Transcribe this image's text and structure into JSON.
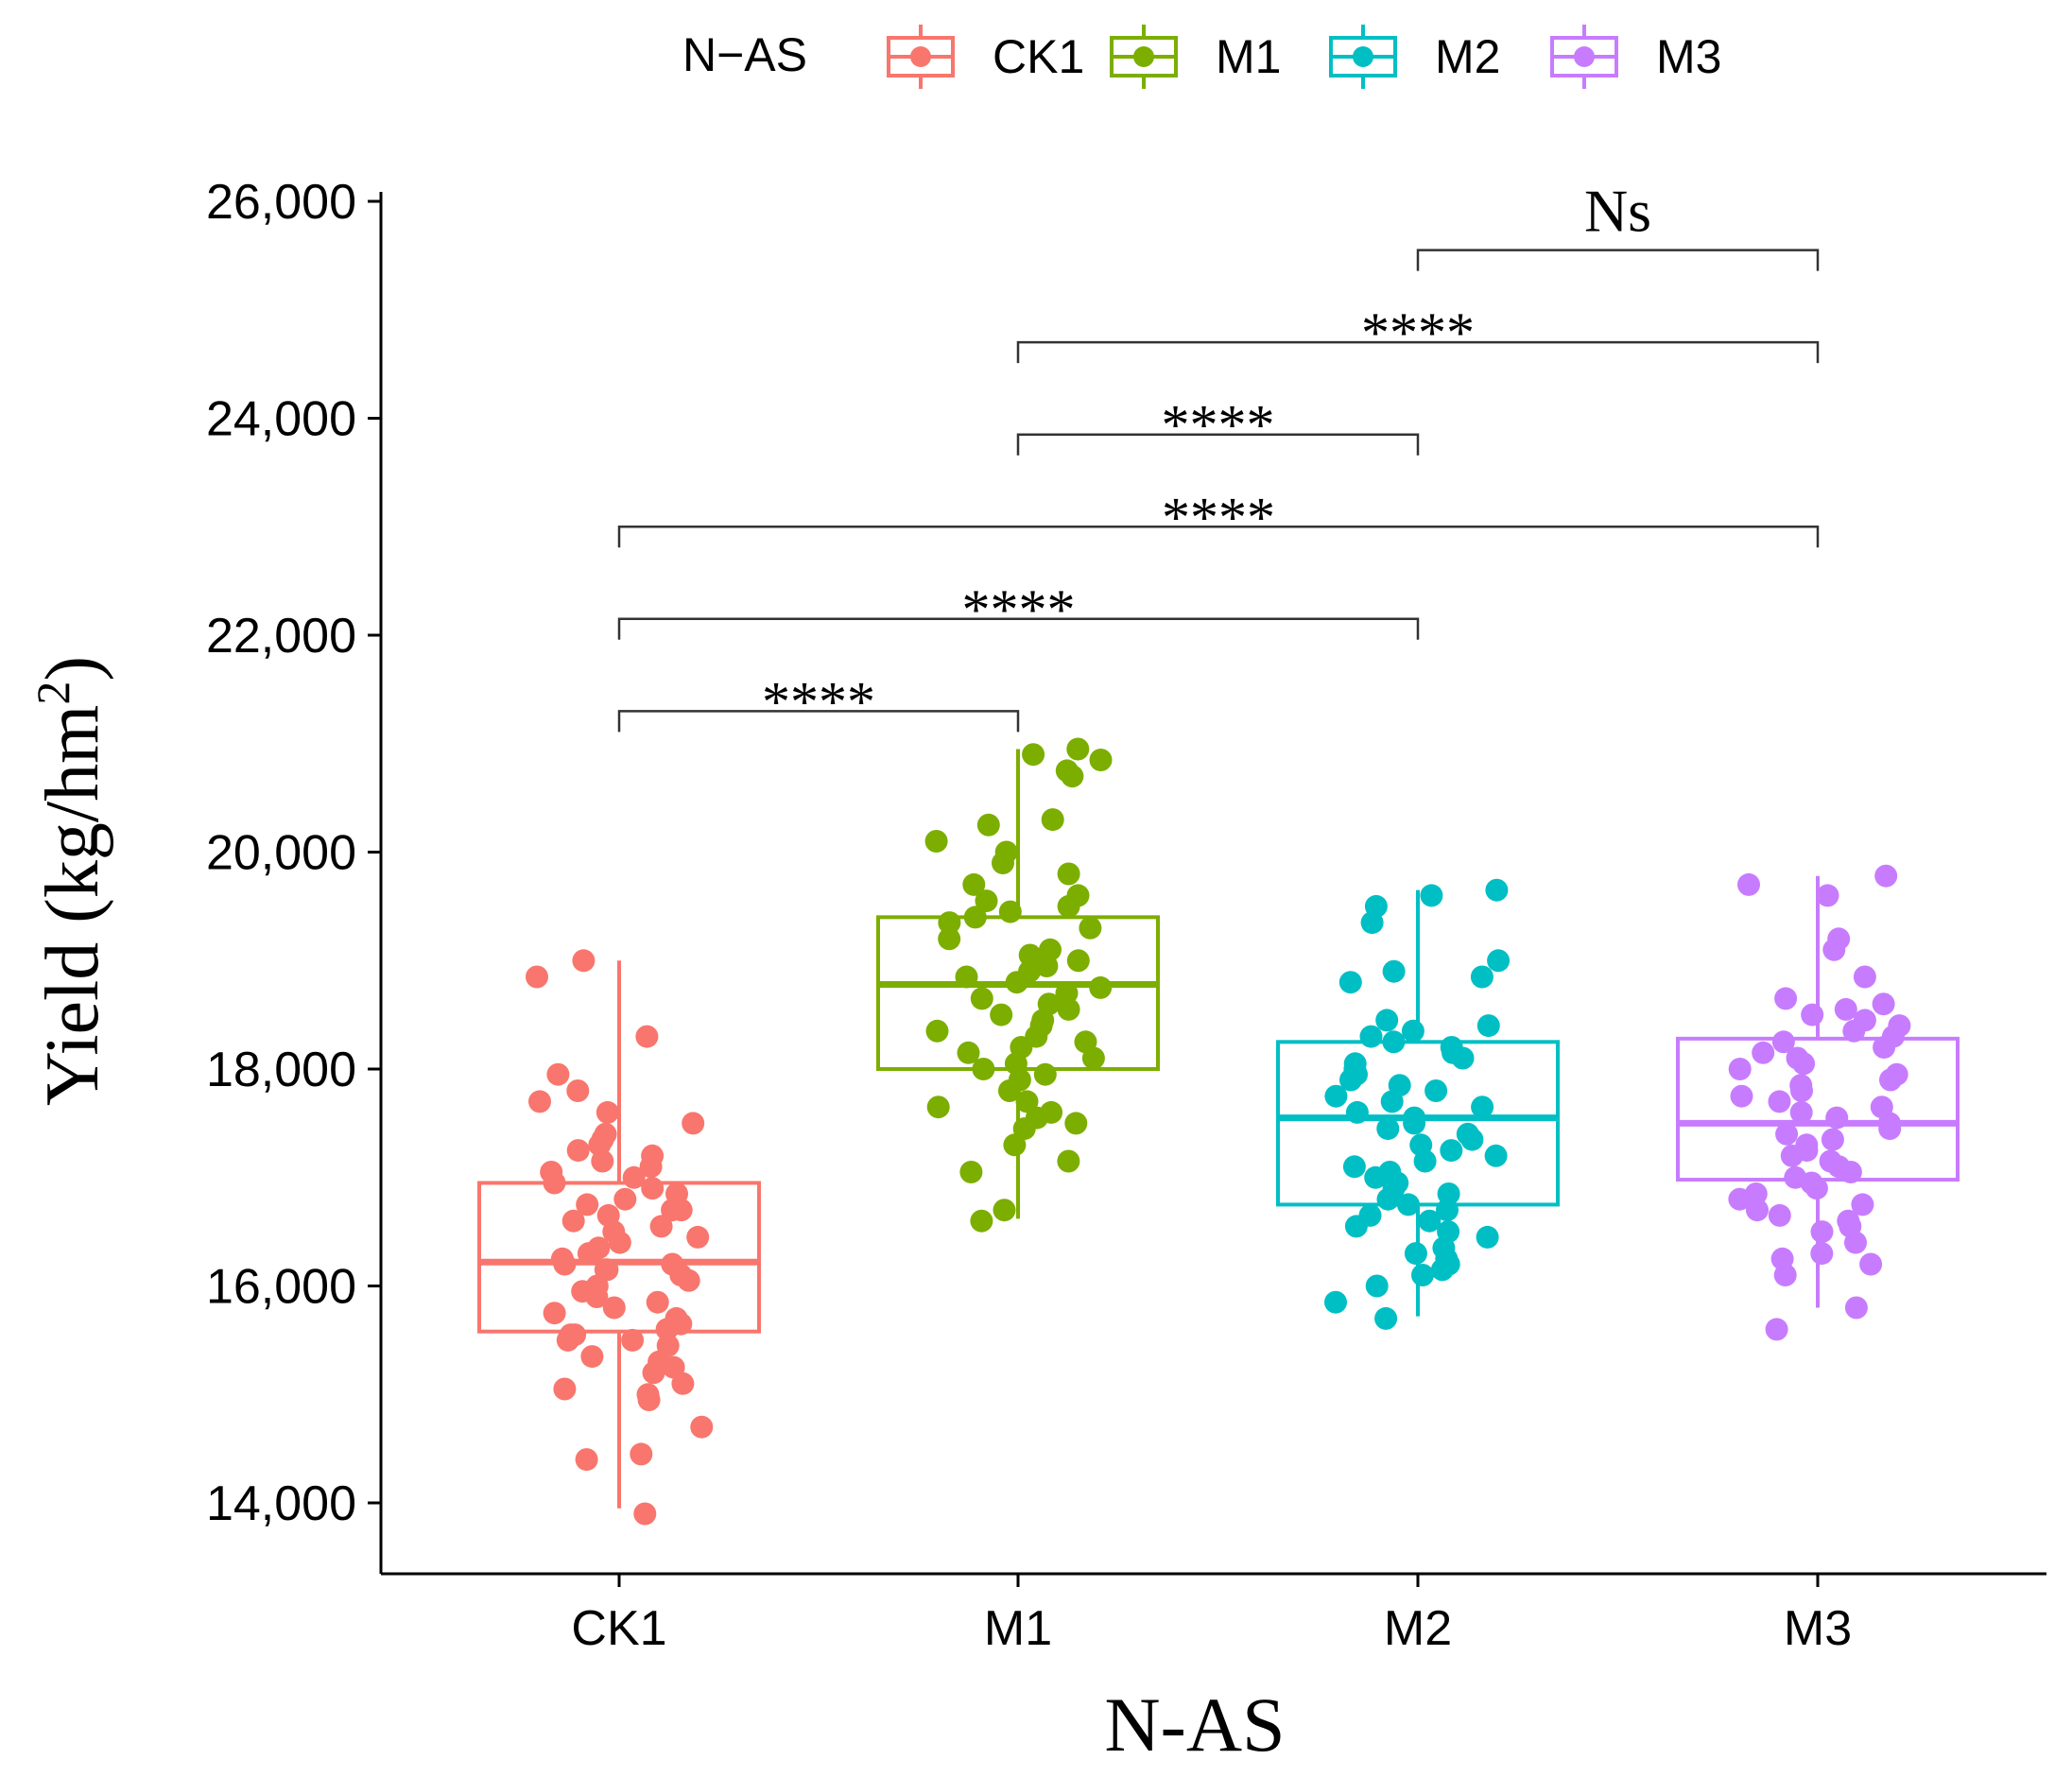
{
  "chart_data": {
    "type": "box",
    "title": "",
    "xlabel": "N-AS",
    "ylabel": "Yield (kg/hm",
    "ylabel_sup": "2",
    "ylabel_close": ")",
    "ylim": [
      13800,
      26000
    ],
    "yticks": [
      14000,
      16000,
      18000,
      20000,
      22000,
      24000,
      26000
    ],
    "ytick_labels": [
      "14,000",
      "16,000",
      "18,000",
      "20,000",
      "22,000",
      "24,000",
      "26,000"
    ],
    "categories": [
      "CK1",
      "M1",
      "M2",
      "M3"
    ],
    "legend": {
      "title": "N−AS",
      "position": "top",
      "entries": [
        "CK1",
        "M1",
        "M2",
        "M3"
      ]
    },
    "colors": {
      "CK1": "#F8766D",
      "M1": "#7CAE00",
      "M2": "#00BFC4",
      "M3": "#C77CFF"
    },
    "boxes": [
      {
        "name": "CK1",
        "min": 13950,
        "q1": 15580,
        "median": 16220,
        "q3": 16950,
        "max": 19000
      },
      {
        "name": "M1",
        "min": 16620,
        "q1": 18000,
        "median": 18780,
        "q3": 19400,
        "max": 20950
      },
      {
        "name": "M2",
        "min": 15720,
        "q1": 16750,
        "median": 17550,
        "q3": 18250,
        "max": 19650
      },
      {
        "name": "M3",
        "min": 15800,
        "q1": 16980,
        "median": 17500,
        "q3": 18280,
        "max": 19780
      }
    ],
    "points": {
      "CK1": [
        13900,
        14400,
        14450,
        14700,
        14950,
        15000,
        15050,
        15100,
        15200,
        15250,
        15300,
        15350,
        15450,
        15500,
        15500,
        15550,
        15550,
        15600,
        15650,
        15700,
        15750,
        15800,
        15850,
        15900,
        15950,
        16000,
        16050,
        16100,
        16150,
        16150,
        16200,
        16200,
        16250,
        16300,
        16350,
        16400,
        16450,
        16500,
        16550,
        16600,
        16650,
        16700,
        16700,
        16750,
        16800,
        16850,
        16900,
        16950,
        17000,
        17050,
        17100,
        17150,
        17200,
        17250,
        17300,
        17350,
        17400,
        17500,
        17600,
        17700,
        17800,
        17950,
        18300,
        18850,
        19000
      ],
      "M1": [
        16600,
        16700,
        17050,
        17150,
        17300,
        17450,
        17500,
        17550,
        17600,
        17650,
        17700,
        17800,
        17900,
        17950,
        18000,
        18050,
        18100,
        18150,
        18200,
        18250,
        18300,
        18350,
        18400,
        18450,
        18500,
        18550,
        18600,
        18650,
        18700,
        18750,
        18800,
        18850,
        18900,
        18950,
        19000,
        19050,
        19100,
        19200,
        19300,
        19350,
        19400,
        19450,
        19500,
        19550,
        19600,
        19700,
        19800,
        19900,
        20000,
        20100,
        20250,
        20300,
        20700,
        20750,
        20850,
        20900,
        20950
      ],
      "M2": [
        15700,
        15850,
        16000,
        16100,
        16150,
        16200,
        16250,
        16300,
        16350,
        16450,
        16500,
        16550,
        16600,
        16650,
        16700,
        16750,
        16800,
        16850,
        16900,
        16950,
        17000,
        17050,
        17100,
        17150,
        17200,
        17250,
        17300,
        17350,
        17400,
        17450,
        17500,
        17550,
        17600,
        17650,
        17700,
        17750,
        17800,
        17850,
        17900,
        17950,
        18000,
        18050,
        18100,
        18150,
        18200,
        18250,
        18300,
        18350,
        18400,
        18450,
        18800,
        18850,
        18900,
        19000,
        19350,
        19500,
        19600,
        19650
      ],
      "M3": [
        15600,
        15800,
        16100,
        16200,
        16250,
        16300,
        16400,
        16500,
        16550,
        16600,
        16650,
        16700,
        16750,
        16800,
        16850,
        16900,
        16950,
        17000,
        17050,
        17100,
        17150,
        17200,
        17250,
        17300,
        17350,
        17400,
        17450,
        17500,
        17550,
        17600,
        17650,
        17700,
        17750,
        17800,
        17850,
        17900,
        17950,
        18000,
        18050,
        18100,
        18150,
        18200,
        18250,
        18300,
        18350,
        18400,
        18450,
        18500,
        18550,
        18600,
        18650,
        18850,
        19100,
        19200,
        19600,
        19700,
        19780
      ]
    },
    "comparisons": [
      {
        "from": "CK1",
        "to": "M1",
        "y": 21300,
        "label": "****"
      },
      {
        "from": "CK1",
        "to": "M2",
        "y": 22150,
        "label": "****"
      },
      {
        "from": "CK1",
        "to": "M3",
        "y": 23000,
        "label": "****"
      },
      {
        "from": "M1",
        "to": "M2",
        "y": 23850,
        "label": "****"
      },
      {
        "from": "M1",
        "to": "M3",
        "y": 24700,
        "label": "****"
      },
      {
        "from": "M2",
        "to": "M3",
        "y": 25550,
        "label": "Ns"
      }
    ]
  }
}
